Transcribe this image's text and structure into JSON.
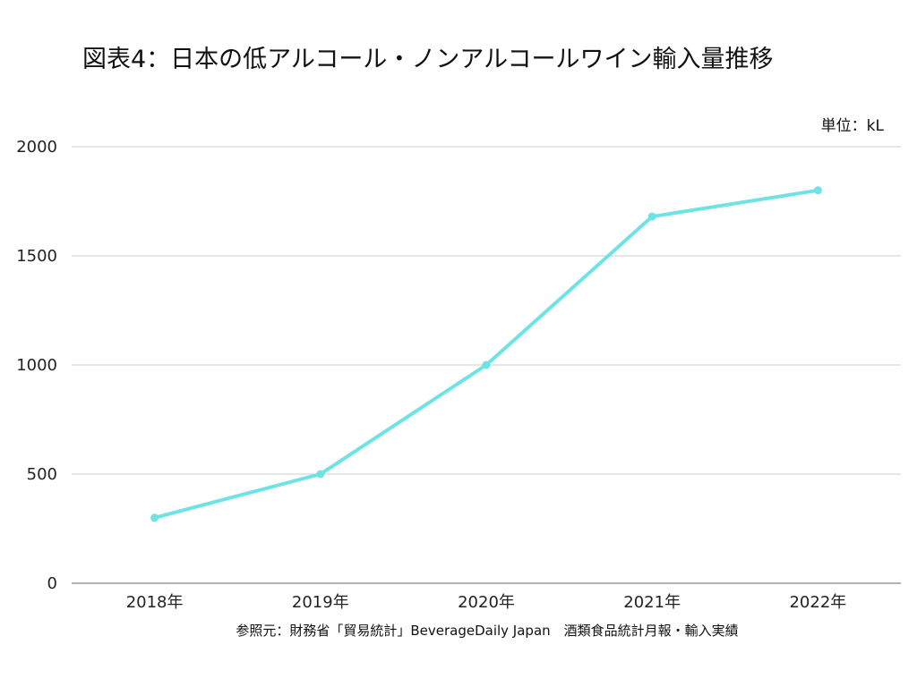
{
  "chart_data": {
    "type": "line",
    "title": "図表4：日本の低アルコール・ノンアルコールワイン輸入量推移",
    "unit_label": "単位：kL",
    "source": "参照元：財務省「貿易統計」BeverageDaily Japan　酒類食品統計月報・輸入実績",
    "categories": [
      "2018年",
      "2019年",
      "2020年",
      "2021年",
      "2022年"
    ],
    "series": [
      {
        "name": "輸入量",
        "values": [
          300,
          500,
          1000,
          1680,
          1800
        ],
        "color": "#6ee3e3"
      }
    ],
    "ylim": [
      0,
      2000
    ],
    "yticks": [
      0,
      500,
      1000,
      1500,
      2000
    ],
    "xlabel": "",
    "ylabel": "",
    "grid": true,
    "legend": "none"
  }
}
